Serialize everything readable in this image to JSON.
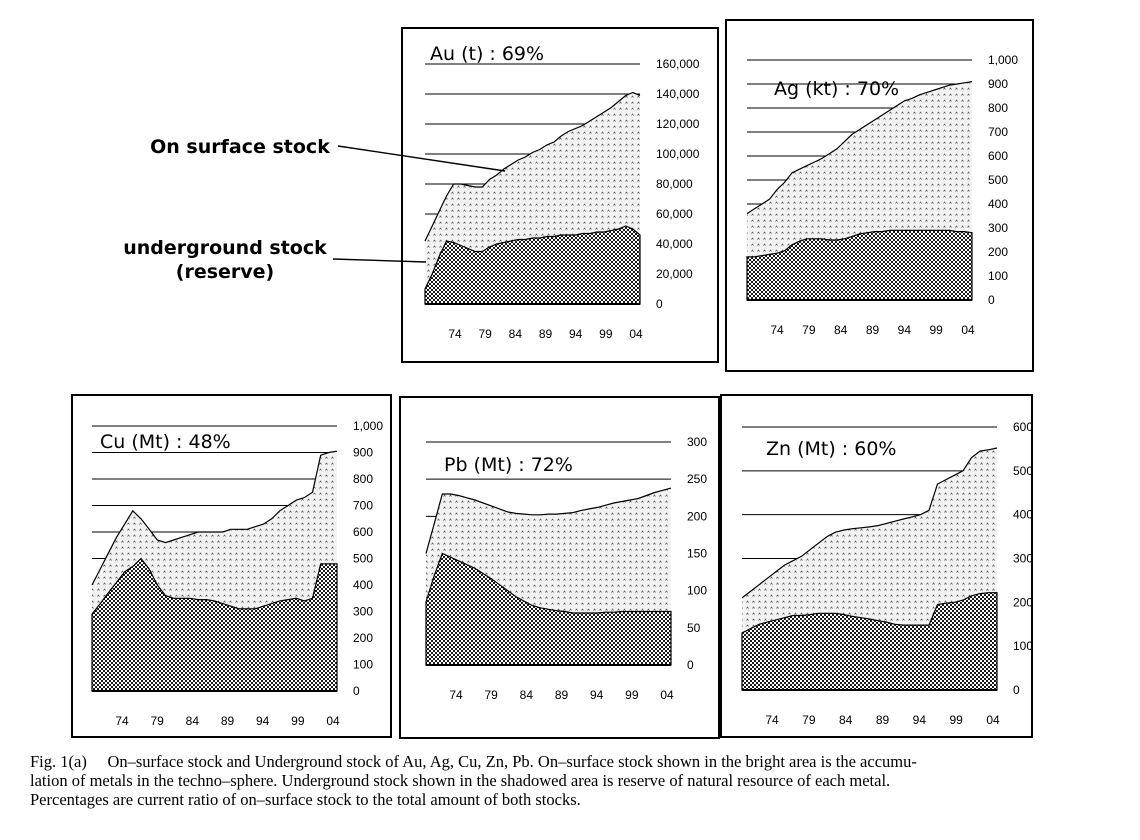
{
  "annotations": {
    "on_surface": "On surface  stock",
    "underground_line1": "underground stock",
    "underground_line2": "(reserve)"
  },
  "caption": {
    "line1": "Fig. 1(a)　 On–surface stock and Underground stock of Au, Ag, Cu, Zn, Pb. On–surface stock shown in the bright area is the accumu-",
    "line2": "lation of metals in the techno–sphere. Underground stock shown in the shadowed area is reserve of natural resource of each metal.",
    "line3": "Percentages are current ratio of on–surface stock to the total amount of both stocks."
  },
  "colors": {
    "on_surface_fill": "#f2f2f2",
    "underground_fill": "#1a1a1a",
    "outline": "#000000"
  },
  "chart_data": [
    {
      "id": "au",
      "type": "area",
      "title": "Au (t) : 69%",
      "x": [
        1974,
        1975,
        1976,
        1977,
        1978,
        1979,
        1980,
        1981,
        1982,
        1983,
        1984,
        1985,
        1986,
        1987,
        1988,
        1989,
        1990,
        1991,
        1992,
        1993,
        1994,
        1995,
        1996,
        1997,
        1998,
        1999,
        2000,
        2001,
        2002,
        2003,
        2004
      ],
      "xticks": [
        "74",
        "79",
        "84",
        "89",
        "94",
        "99",
        "04"
      ],
      "yticks": [
        "0",
        "20,000",
        "40,000",
        "60,000",
        "80,000",
        "100,000",
        "120,000",
        "140,000",
        "160,000"
      ],
      "ylim": [
        0,
        160000
      ],
      "grid": true,
      "series": [
        {
          "values": [
            42000,
            52000,
            62000,
            72000,
            80000,
            80000,
            79000,
            78000,
            78000,
            83000,
            86000,
            90000,
            93000,
            96000,
            98000,
            101000,
            103000,
            106000,
            108000,
            112000,
            115000,
            117000,
            119000,
            122000,
            125000,
            128000,
            131000,
            135000,
            139000,
            141000,
            139000
          ]
        },
        {
          "values": [
            10000,
            20000,
            32000,
            42000,
            41000,
            39000,
            37000,
            35000,
            35000,
            38000,
            40000,
            41000,
            42000,
            43000,
            43000,
            44000,
            44000,
            45000,
            45000,
            46000,
            46000,
            46000,
            47000,
            47000,
            48000,
            48000,
            49000,
            50000,
            52000,
            50000,
            46000
          ]
        }
      ]
    },
    {
      "id": "ag",
      "type": "area",
      "title": "Ag (kt) : 70%",
      "x": [
        1974,
        1975,
        1976,
        1977,
        1978,
        1979,
        1980,
        1981,
        1982,
        1983,
        1984,
        1985,
        1986,
        1987,
        1988,
        1989,
        1990,
        1991,
        1992,
        1993,
        1994,
        1995,
        1996,
        1997,
        1998,
        1999,
        2000,
        2001,
        2002,
        2003,
        2004
      ],
      "xticks": [
        "74",
        "79",
        "84",
        "89",
        "94",
        "99",
        "04"
      ],
      "yticks": [
        "0",
        "100",
        "200",
        "300",
        "400",
        "500",
        "600",
        "700",
        "800",
        "900",
        "1,000"
      ],
      "ylim": [
        0,
        1000
      ],
      "grid": true,
      "series": [
        {
          "values": [
            360,
            380,
            400,
            420,
            460,
            490,
            530,
            545,
            560,
            575,
            590,
            610,
            630,
            660,
            690,
            710,
            730,
            750,
            770,
            790,
            810,
            830,
            840,
            855,
            865,
            875,
            885,
            895,
            900,
            905,
            910
          ]
        },
        {
          "values": [
            180,
            180,
            185,
            190,
            195,
            205,
            230,
            245,
            255,
            255,
            255,
            250,
            250,
            255,
            265,
            275,
            280,
            285,
            285,
            290,
            290,
            290,
            290,
            290,
            290,
            290,
            290,
            290,
            285,
            285,
            280
          ]
        }
      ]
    },
    {
      "id": "cu",
      "type": "area",
      "title": "Cu (Mt) : 48%",
      "x": [
        1974,
        1975,
        1976,
        1977,
        1978,
        1979,
        1980,
        1981,
        1982,
        1983,
        1984,
        1985,
        1986,
        1987,
        1988,
        1989,
        1990,
        1991,
        1992,
        1993,
        1994,
        1995,
        1996,
        1997,
        1998,
        1999,
        2000,
        2001,
        2002,
        2003,
        2004
      ],
      "xticks": [
        "74",
        "79",
        "84",
        "89",
        "94",
        "99",
        "04"
      ],
      "yticks": [
        "0",
        "100",
        "200",
        "300",
        "400",
        "500",
        "600",
        "700",
        "800",
        "900",
        "1,000"
      ],
      "ylim": [
        0,
        1000
      ],
      "grid": true,
      "series": [
        {
          "values": [
            400,
            460,
            520,
            580,
            630,
            680,
            650,
            610,
            570,
            560,
            570,
            580,
            590,
            600,
            600,
            600,
            600,
            610,
            610,
            610,
            620,
            630,
            650,
            680,
            700,
            720,
            730,
            750,
            890,
            900,
            905
          ]
        },
        {
          "values": [
            290,
            330,
            370,
            410,
            450,
            470,
            500,
            460,
            400,
            360,
            350,
            350,
            350,
            345,
            345,
            340,
            330,
            320,
            310,
            310,
            310,
            320,
            330,
            340,
            345,
            350,
            340,
            350,
            480,
            480,
            480
          ]
        }
      ]
    },
    {
      "id": "pb",
      "type": "area",
      "title": "Pb (Mt) : 72%",
      "x": [
        1974,
        1975,
        1976,
        1977,
        1978,
        1979,
        1980,
        1981,
        1982,
        1983,
        1984,
        1985,
        1986,
        1987,
        1988,
        1989,
        1990,
        1991,
        1992,
        1993,
        1994,
        1995,
        1996,
        1997,
        1998,
        1999,
        2000,
        2001,
        2002,
        2003,
        2004
      ],
      "xticks": [
        "74",
        "79",
        "84",
        "89",
        "94",
        "99",
        "04"
      ],
      "yticks": [
        "0",
        "50",
        "100",
        "150",
        "200",
        "250",
        "300"
      ],
      "ylim": [
        0,
        300
      ],
      "grid": true,
      "series": [
        {
          "values": [
            150,
            190,
            230,
            230,
            228,
            225,
            222,
            218,
            214,
            210,
            206,
            204,
            203,
            202,
            202,
            203,
            203,
            204,
            205,
            208,
            210,
            212,
            215,
            218,
            220,
            222,
            224,
            228,
            232,
            235,
            238
          ]
        },
        {
          "values": [
            85,
            120,
            150,
            145,
            140,
            135,
            130,
            123,
            116,
            108,
            100,
            92,
            86,
            80,
            77,
            75,
            73,
            72,
            70,
            70,
            70,
            70,
            71,
            71,
            72,
            72,
            72,
            72,
            72,
            72,
            72
          ]
        }
      ]
    },
    {
      "id": "zn",
      "type": "area",
      "title": "Zn (Mt) : 60%",
      "x": [
        1974,
        1975,
        1976,
        1977,
        1978,
        1979,
        1980,
        1981,
        1982,
        1983,
        1984,
        1985,
        1986,
        1987,
        1988,
        1989,
        1990,
        1991,
        1992,
        1993,
        1994,
        1995,
        1996,
        1997,
        1998,
        1999,
        2000,
        2001,
        2002,
        2003,
        2004
      ],
      "xticks": [
        "74",
        "79",
        "84",
        "89",
        "94",
        "99",
        "04"
      ],
      "yticks": [
        "0",
        "100",
        "200",
        "300",
        "400",
        "500",
        "600"
      ],
      "ylim": [
        0,
        600
      ],
      "grid": true,
      "series": [
        {
          "values": [
            210,
            225,
            240,
            255,
            270,
            285,
            295,
            305,
            320,
            335,
            350,
            360,
            365,
            368,
            370,
            372,
            375,
            380,
            385,
            390,
            395,
            400,
            410,
            470,
            480,
            490,
            500,
            530,
            545,
            548,
            552
          ]
        },
        {
          "values": [
            130,
            140,
            150,
            155,
            160,
            165,
            170,
            170,
            172,
            175,
            175,
            175,
            172,
            168,
            165,
            162,
            158,
            155,
            150,
            148,
            148,
            148,
            148,
            195,
            198,
            200,
            205,
            215,
            220,
            222,
            222
          ]
        }
      ]
    }
  ]
}
